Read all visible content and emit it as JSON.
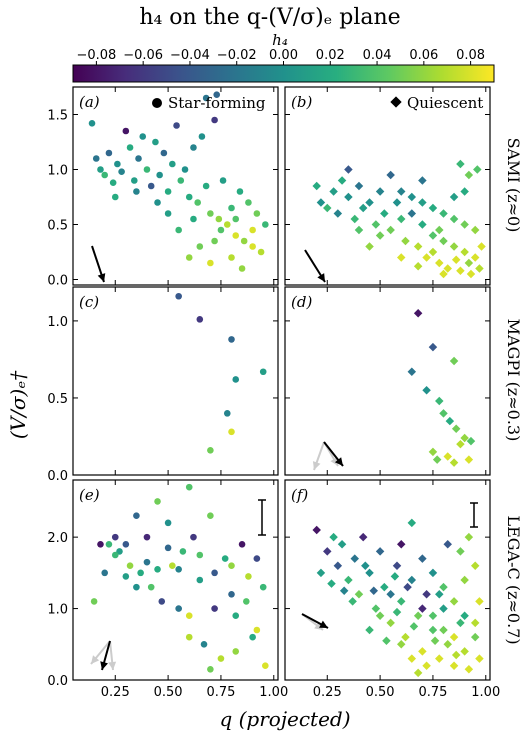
{
  "figure": {
    "title": "h₄ on the q-(V/σ)ₑ plane",
    "colorbar_label": "h₄",
    "colorbar_ticks": [
      "−0.08",
      "−0.06",
      "−0.04",
      "−0.02",
      "0.00",
      "0.02",
      "0.04",
      "0.06",
      "0.08"
    ],
    "xlabel": "q (projected)",
    "ylabel": "(V/σ)ₑ†",
    "legend_sf": "Star-forming",
    "legend_q": "Quiescent",
    "row_labels": [
      "SAMI (z≈0)",
      "MAGPI (z≈0.3)",
      "LEGA-C (z≈0.7)"
    ],
    "panel_labels": [
      "(a)",
      "(b)",
      "(c)",
      "(d)",
      "(e)",
      "(f)"
    ],
    "x_ticks": [
      "0.25",
      "0.50",
      "0.75",
      "1.00"
    ],
    "y_ticks_row1": [
      "0.0",
      "0.5",
      "1.0",
      "1.5"
    ],
    "y_ticks_row2": [
      "0.0",
      "0.5",
      "1.0"
    ],
    "y_ticks_row3": [
      "0.0",
      "1.0",
      "2.0"
    ]
  },
  "chart_data": [
    {
      "panel": "(a)",
      "type": "scatter",
      "marker": "circle",
      "series": "Star-forming",
      "survey": "SAMI",
      "xlim": [
        0.05,
        1.02
      ],
      "ylim": [
        -0.05,
        1.75
      ],
      "points": [
        [
          0.14,
          1.42
        ],
        [
          0.16,
          1.1
        ],
        [
          0.18,
          1.0
        ],
        [
          0.2,
          0.95
        ],
        [
          0.22,
          1.15
        ],
        [
          0.24,
          0.88
        ],
        [
          0.26,
          1.05
        ],
        [
          0.28,
          0.98
        ],
        [
          0.3,
          1.35
        ],
        [
          0.32,
          1.2
        ],
        [
          0.34,
          0.9
        ],
        [
          0.36,
          1.1
        ],
        [
          0.38,
          1.3
        ],
        [
          0.4,
          1.0
        ],
        [
          0.42,
          0.85
        ],
        [
          0.44,
          1.25
        ],
        [
          0.46,
          0.95
        ],
        [
          0.48,
          1.15
        ],
        [
          0.5,
          0.8
        ],
        [
          0.52,
          1.05
        ],
        [
          0.54,
          1.4
        ],
        [
          0.56,
          0.9
        ],
        [
          0.58,
          1.0
        ],
        [
          0.6,
          0.75
        ],
        [
          0.62,
          1.2
        ],
        [
          0.64,
          0.7
        ],
        [
          0.66,
          1.3
        ],
        [
          0.68,
          0.85
        ],
        [
          0.7,
          0.6
        ],
        [
          0.72,
          1.45
        ],
        [
          0.74,
          0.55
        ],
        [
          0.76,
          0.9
        ],
        [
          0.78,
          0.5
        ],
        [
          0.8,
          0.65
        ],
        [
          0.82,
          0.4
        ],
        [
          0.84,
          0.8
        ],
        [
          0.86,
          0.35
        ],
        [
          0.88,
          0.7
        ],
        [
          0.9,
          0.3
        ],
        [
          0.92,
          0.6
        ],
        [
          0.94,
          0.25
        ],
        [
          0.96,
          0.5
        ],
        [
          0.6,
          0.2
        ],
        [
          0.65,
          0.3
        ],
        [
          0.7,
          0.15
        ],
        [
          0.75,
          0.45
        ],
        [
          0.8,
          0.2
        ],
        [
          0.85,
          0.1
        ],
        [
          0.9,
          0.45
        ],
        [
          0.55,
          0.45
        ],
        [
          0.62,
          0.55
        ],
        [
          0.72,
          0.35
        ],
        [
          0.82,
          0.55
        ],
        [
          0.5,
          0.6
        ],
        [
          0.45,
          0.7
        ],
        [
          0.35,
          0.8
        ],
        [
          0.25,
          0.75
        ],
        [
          0.68,
          1.65
        ],
        [
          0.73,
          1.68
        ]
      ],
      "h4": [
        0.0,
        -0.02,
        0.01,
        0.03,
        -0.03,
        0.02,
        0.0,
        -0.01,
        -0.08,
        0.02,
        0.01,
        -0.02,
        0.0,
        0.03,
        -0.04,
        0.01,
        0.0,
        -0.03,
        0.02,
        0.01,
        -0.05,
        0.03,
        0.0,
        0.02,
        -0.01,
        0.04,
        0.0,
        0.02,
        0.05,
        -0.06,
        0.06,
        0.01,
        0.07,
        0.03,
        0.08,
        0.02,
        0.06,
        0.04,
        0.08,
        0.05,
        0.07,
        0.03,
        0.06,
        0.05,
        0.08,
        0.04,
        0.07,
        0.06,
        0.08,
        0.03,
        0.02,
        0.05,
        0.04,
        0.01,
        0.0,
        -0.01,
        0.02,
        -0.02,
        -0.03
      ]
    },
    {
      "panel": "(b)",
      "type": "scatter",
      "marker": "diamond",
      "series": "Quiescent",
      "survey": "SAMI",
      "xlim": [
        0.05,
        1.02
      ],
      "ylim": [
        -0.05,
        1.75
      ],
      "points": [
        [
          0.2,
          0.85
        ],
        [
          0.22,
          0.7
        ],
        [
          0.25,
          0.65
        ],
        [
          0.28,
          0.8
        ],
        [
          0.3,
          0.6
        ],
        [
          0.32,
          0.9
        ],
        [
          0.35,
          0.75
        ],
        [
          0.38,
          0.55
        ],
        [
          0.4,
          0.85
        ],
        [
          0.42,
          0.65
        ],
        [
          0.45,
          0.7
        ],
        [
          0.48,
          0.5
        ],
        [
          0.5,
          0.8
        ],
        [
          0.52,
          0.6
        ],
        [
          0.55,
          0.45
        ],
        [
          0.58,
          0.7
        ],
        [
          0.6,
          0.55
        ],
        [
          0.62,
          0.35
        ],
        [
          0.65,
          0.6
        ],
        [
          0.68,
          0.3
        ],
        [
          0.7,
          0.5
        ],
        [
          0.72,
          0.2
        ],
        [
          0.75,
          0.4
        ],
        [
          0.78,
          0.15
        ],
        [
          0.8,
          0.35
        ],
        [
          0.82,
          0.1
        ],
        [
          0.85,
          0.3
        ],
        [
          0.88,
          0.08
        ],
        [
          0.9,
          0.25
        ],
        [
          0.92,
          0.15
        ],
        [
          0.95,
          0.2
        ],
        [
          0.97,
          0.1
        ],
        [
          0.6,
          0.8
        ],
        [
          0.65,
          0.75
        ],
        [
          0.7,
          0.7
        ],
        [
          0.75,
          0.65
        ],
        [
          0.8,
          0.6
        ],
        [
          0.85,
          0.55
        ],
        [
          0.9,
          0.5
        ],
        [
          0.95,
          0.45
        ],
        [
          0.88,
          1.05
        ],
        [
          0.92,
          0.95
        ],
        [
          0.96,
          1.0
        ],
        [
          0.55,
          0.95
        ],
        [
          0.5,
          0.4
        ],
        [
          0.45,
          0.3
        ],
        [
          0.85,
          0.75
        ],
        [
          0.9,
          0.8
        ],
        [
          0.75,
          0.25
        ],
        [
          0.8,
          0.05
        ],
        [
          0.93,
          0.05
        ],
        [
          0.7,
          0.9
        ],
        [
          0.35,
          1.0
        ],
        [
          0.4,
          0.45
        ],
        [
          0.6,
          0.2
        ],
        [
          0.68,
          0.12
        ],
        [
          0.86,
          0.18
        ],
        [
          0.78,
          0.45
        ],
        [
          0.98,
          0.3
        ]
      ],
      "h4": [
        0.02,
        0.0,
        0.03,
        0.01,
        -0.01,
        0.02,
        0.0,
        0.03,
        -0.02,
        0.01,
        0.0,
        0.04,
        -0.01,
        0.02,
        0.05,
        0.0,
        0.03,
        0.06,
        -0.02,
        0.07,
        0.02,
        0.08,
        0.04,
        0.08,
        0.05,
        0.08,
        0.06,
        0.08,
        0.07,
        0.06,
        0.08,
        0.07,
        -0.01,
        0.0,
        0.01,
        0.02,
        0.03,
        0.04,
        0.05,
        0.06,
        0.03,
        0.05,
        0.04,
        -0.03,
        0.05,
        0.06,
        0.01,
        0.02,
        0.07,
        0.08,
        0.08,
        -0.02,
        -0.04,
        0.04,
        0.08,
        0.07,
        0.08,
        0.05,
        0.08
      ]
    },
    {
      "panel": "(c)",
      "type": "scatter",
      "marker": "circle",
      "series": "Star-forming",
      "survey": "MAGPI",
      "xlim": [
        0.05,
        1.02
      ],
      "ylim": [
        0.0,
        1.22
      ],
      "points": [
        [
          0.55,
          1.16
        ],
        [
          0.65,
          1.01
        ],
        [
          0.8,
          0.88
        ],
        [
          0.82,
          0.62
        ],
        [
          0.78,
          0.4
        ],
        [
          0.95,
          0.67
        ],
        [
          0.8,
          0.28
        ],
        [
          0.7,
          0.16
        ]
      ],
      "h4": [
        -0.04,
        -0.06,
        -0.03,
        0.0,
        -0.01,
        0.01,
        0.08,
        0.05
      ]
    },
    {
      "panel": "(d)",
      "type": "scatter",
      "marker": "diamond",
      "series": "Quiescent",
      "survey": "MAGPI",
      "xlim": [
        0.05,
        1.02
      ],
      "ylim": [
        0.0,
        1.22
      ],
      "points": [
        [
          0.68,
          1.05
        ],
        [
          0.75,
          0.83
        ],
        [
          0.65,
          0.67
        ],
        [
          0.85,
          0.74
        ],
        [
          0.72,
          0.55
        ],
        [
          0.78,
          0.48
        ],
        [
          0.8,
          0.4
        ],
        [
          0.83,
          0.35
        ],
        [
          0.86,
          0.3
        ],
        [
          0.9,
          0.24
        ],
        [
          0.93,
          0.22
        ],
        [
          0.88,
          0.2
        ],
        [
          0.82,
          0.12
        ],
        [
          0.75,
          0.15
        ],
        [
          0.77,
          0.1
        ],
        [
          0.85,
          0.08
        ],
        [
          0.92,
          0.1
        ]
      ],
      "h4": [
        -0.08,
        -0.04,
        -0.02,
        0.05,
        0.0,
        0.03,
        0.04,
        0.02,
        0.05,
        0.06,
        0.04,
        0.07,
        0.08,
        0.06,
        0.05,
        0.07,
        0.08
      ]
    },
    {
      "panel": "(e)",
      "type": "scatter",
      "marker": "circle",
      "series": "Star-forming",
      "survey": "LEGA-C",
      "xlim": [
        0.05,
        1.02
      ],
      "ylim": [
        0.0,
        2.8
      ],
      "points": [
        [
          0.18,
          1.9
        ],
        [
          0.2,
          1.5
        ],
        [
          0.22,
          1.9
        ],
        [
          0.25,
          2.0
        ],
        [
          0.27,
          1.8
        ],
        [
          0.3,
          1.9
        ],
        [
          0.32,
          1.6
        ],
        [
          0.35,
          2.3
        ],
        [
          0.37,
          1.5
        ],
        [
          0.4,
          2.0
        ],
        [
          0.42,
          1.3
        ],
        [
          0.45,
          2.5
        ],
        [
          0.47,
          1.1
        ],
        [
          0.5,
          2.2
        ],
        [
          0.52,
          1.6
        ],
        [
          0.55,
          1.0
        ],
        [
          0.57,
          1.8
        ],
        [
          0.6,
          0.9
        ],
        [
          0.62,
          2.0
        ],
        [
          0.65,
          1.4
        ],
        [
          0.67,
          0.5
        ],
        [
          0.7,
          2.3
        ],
        [
          0.72,
          1.5
        ],
        [
          0.75,
          0.3
        ],
        [
          0.77,
          1.7
        ],
        [
          0.8,
          1.2
        ],
        [
          0.82,
          0.4
        ],
        [
          0.85,
          1.9
        ],
        [
          0.87,
          1.1
        ],
        [
          0.9,
          0.6
        ],
        [
          0.92,
          1.7
        ],
        [
          0.95,
          1.3
        ],
        [
          0.96,
          0.2
        ],
        [
          0.7,
          0.15
        ],
        [
          0.6,
          0.6
        ],
        [
          0.55,
          1.55
        ],
        [
          0.45,
          1.55
        ],
        [
          0.35,
          1.3
        ],
        [
          0.5,
          1.85
        ],
        [
          0.65,
          1.75
        ],
        [
          0.8,
          1.6
        ],
        [
          0.4,
          1.65
        ],
        [
          0.3,
          1.45
        ],
        [
          0.25,
          1.75
        ],
        [
          0.15,
          1.1
        ],
        [
          0.6,
          2.7
        ],
        [
          0.72,
          1.0
        ],
        [
          0.82,
          0.9
        ],
        [
          0.88,
          1.45
        ],
        [
          0.92,
          0.7
        ]
      ],
      "h4": [
        -0.08,
        -0.02,
        0.03,
        -0.06,
        0.01,
        -0.04,
        0.06,
        -0.03,
        0.02,
        -0.07,
        0.04,
        0.05,
        -0.05,
        0.0,
        0.07,
        -0.02,
        0.03,
        0.08,
        -0.06,
        0.01,
        -0.01,
        0.05,
        -0.04,
        0.07,
        0.02,
        -0.03,
        0.06,
        -0.08,
        0.04,
        0.02,
        -0.05,
        0.03,
        0.08,
        0.05,
        0.07,
        -0.01,
        0.02,
        0.0,
        -0.03,
        0.04,
        0.06,
        -0.02,
        0.01,
        0.03,
        0.05,
        0.04,
        -0.06,
        0.02,
        0.07,
        0.08
      ]
    },
    {
      "panel": "(f)",
      "type": "scatter",
      "marker": "diamond",
      "series": "Quiescent",
      "survey": "LEGA-C",
      "xlim": [
        0.05,
        1.02
      ],
      "ylim": [
        0.0,
        2.8
      ],
      "points": [
        [
          0.2,
          2.1
        ],
        [
          0.25,
          1.8
        ],
        [
          0.28,
          2.0
        ],
        [
          0.3,
          1.6
        ],
        [
          0.32,
          1.9
        ],
        [
          0.35,
          1.4
        ],
        [
          0.38,
          1.7
        ],
        [
          0.4,
          1.2
        ],
        [
          0.42,
          2.0
        ],
        [
          0.45,
          1.5
        ],
        [
          0.48,
          1.0
        ],
        [
          0.5,
          1.8
        ],
        [
          0.52,
          1.3
        ],
        [
          0.55,
          0.8
        ],
        [
          0.58,
          1.6
        ],
        [
          0.6,
          1.1
        ],
        [
          0.62,
          0.6
        ],
        [
          0.65,
          1.4
        ],
        [
          0.68,
          0.9
        ],
        [
          0.7,
          0.4
        ],
        [
          0.72,
          1.2
        ],
        [
          0.75,
          0.7
        ],
        [
          0.78,
          0.3
        ],
        [
          0.8,
          1.0
        ],
        [
          0.82,
          0.5
        ],
        [
          0.85,
          0.2
        ],
        [
          0.88,
          0.8
        ],
        [
          0.9,
          0.4
        ],
        [
          0.92,
          0.15
        ],
        [
          0.95,
          0.6
        ],
        [
          0.97,
          0.3
        ],
        [
          0.6,
          1.9
        ],
        [
          0.65,
          2.2
        ],
        [
          0.7,
          1.7
        ],
        [
          0.75,
          1.5
        ],
        [
          0.8,
          1.3
        ],
        [
          0.85,
          1.1
        ],
        [
          0.9,
          0.9
        ],
        [
          0.95,
          0.8
        ],
        [
          0.55,
          1.2
        ],
        [
          0.5,
          0.9
        ],
        [
          0.45,
          0.7
        ],
        [
          0.6,
          0.5
        ],
        [
          0.65,
          0.3
        ],
        [
          0.7,
          1.0
        ],
        [
          0.75,
          0.9
        ],
        [
          0.8,
          0.7
        ],
        [
          0.85,
          0.6
        ],
        [
          0.9,
          1.4
        ],
        [
          0.95,
          1.6
        ],
        [
          0.88,
          1.8
        ],
        [
          0.82,
          1.9
        ],
        [
          0.78,
          1.2
        ],
        [
          0.72,
          0.2
        ],
        [
          0.68,
          0.1
        ],
        [
          0.63,
          1.3
        ],
        [
          0.57,
          1.45
        ],
        [
          0.53,
          0.55
        ],
        [
          0.47,
          1.25
        ],
        [
          0.43,
          1.6
        ],
        [
          0.37,
          1.1
        ],
        [
          0.33,
          1.25
        ],
        [
          0.27,
          1.35
        ],
        [
          0.22,
          1.5
        ],
        [
          0.92,
          2.0
        ],
        [
          0.97,
          1.1
        ],
        [
          0.86,
          0.35
        ],
        [
          0.76,
          0.55
        ],
        [
          0.66,
          0.75
        ],
        [
          0.58,
          0.95
        ]
      ],
      "h4": [
        -0.08,
        -0.06,
        0.02,
        -0.04,
        0.01,
        0.03,
        -0.02,
        0.05,
        -0.07,
        0.0,
        0.04,
        -0.03,
        0.02,
        0.06,
        -0.05,
        0.03,
        0.07,
        -0.01,
        0.05,
        0.08,
        -0.06,
        0.04,
        0.08,
        0.01,
        0.06,
        0.08,
        0.03,
        0.07,
        0.08,
        0.05,
        0.08,
        -0.08,
        0.02,
        -0.03,
        0.0,
        0.04,
        0.06,
        0.02,
        0.07,
        -0.02,
        0.05,
        0.03,
        0.06,
        0.08,
        -0.07,
        0.04,
        0.05,
        0.08,
        0.06,
        0.07,
        0.05,
        -0.04,
        0.01,
        0.08,
        0.07,
        -0.05,
        0.02,
        0.04,
        -0.03,
        0.0,
        0.03,
        -0.01,
        0.02,
        0.01,
        0.06,
        0.08,
        0.07,
        0.05,
        0.04,
        0.03
      ]
    }
  ]
}
